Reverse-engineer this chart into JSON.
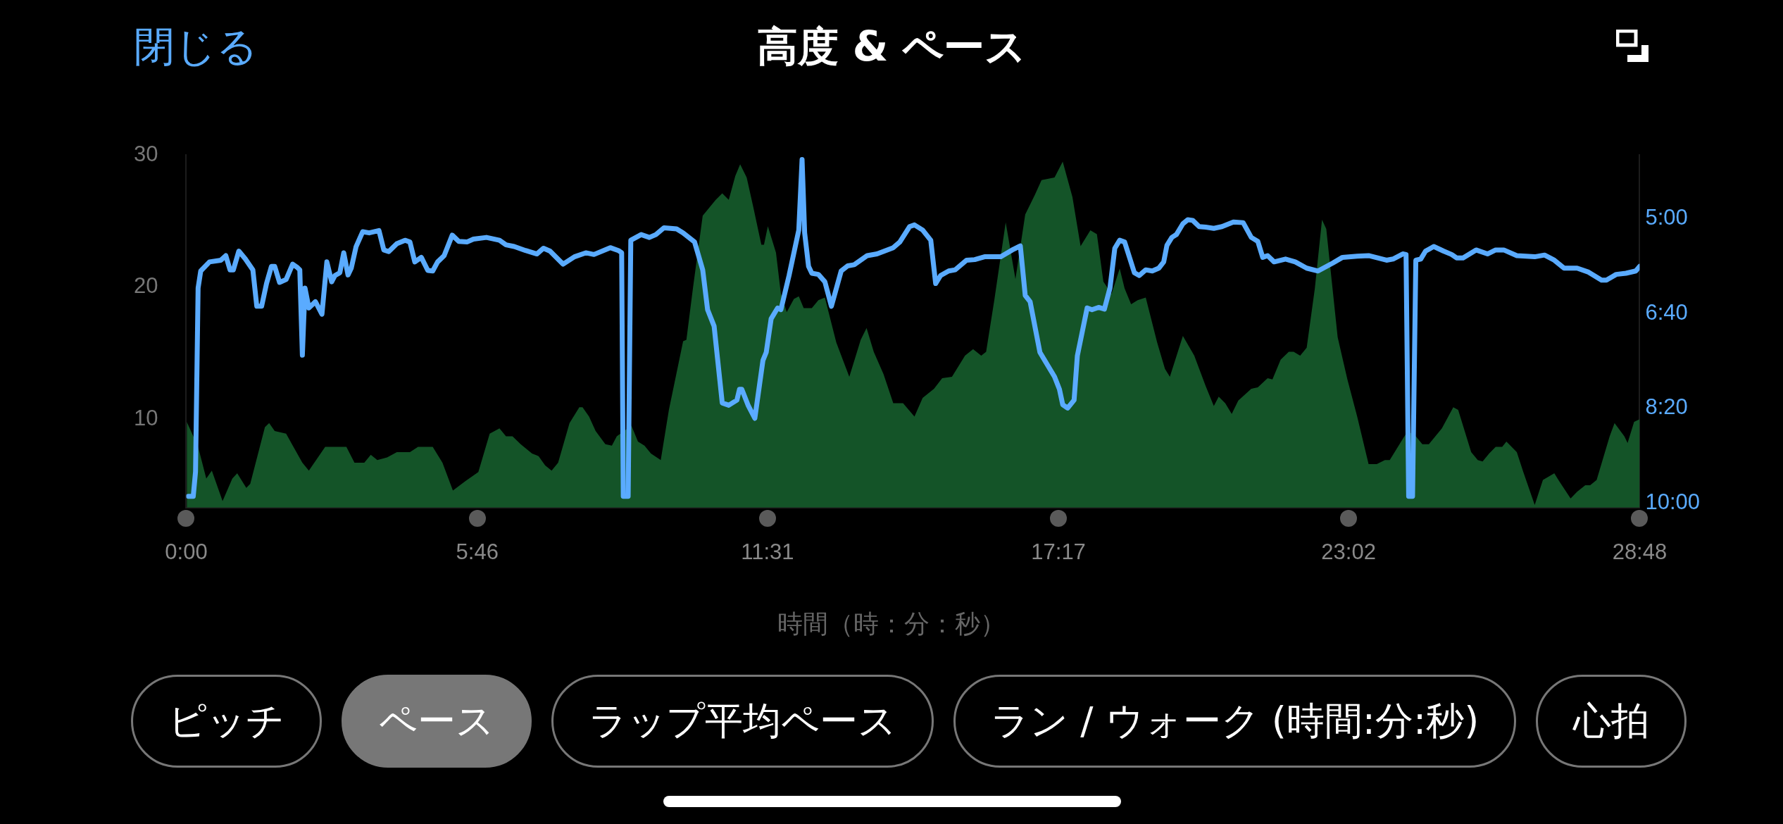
{
  "chart_data": {
    "type": "line",
    "title": "高度 & ペース",
    "xlabel": "時間（時：分：秒）",
    "annotations": [
      "閉じる",
      "ピッチ",
      "ペース",
      "ラップ平均ペース",
      "ラン / ウォーク (時間:分:秒)",
      "心拍"
    ],
    "xlim": [
      0,
      28.8
    ],
    "xticks": [
      {
        "value": 0,
        "label": "0:00"
      },
      {
        "value": 5.767,
        "label": "5:46"
      },
      {
        "value": 11.517,
        "label": "11:31"
      },
      {
        "value": 17.283,
        "label": "17:17"
      },
      {
        "value": 23.033,
        "label": "23:02"
      },
      {
        "value": 28.8,
        "label": "28:48"
      }
    ],
    "ylim": [
      3.3,
      30
    ],
    "yticks": [
      10,
      20,
      30
    ],
    "y2lim": [
      10.08,
      3.88
    ],
    "y2ticks": [
      {
        "value": 5,
        "label": "5:00"
      },
      {
        "value": 6.667,
        "label": "6:40"
      },
      {
        "value": 8.333,
        "label": "8:20"
      },
      {
        "value": 10,
        "label": "10:00"
      }
    ],
    "grid": false,
    "legend": false,
    "series": [
      {
        "type": "area",
        "color": "#145428",
        "x": [
          0.01,
          0.235,
          0.397,
          0.507,
          0.72,
          0.913,
          1.01,
          1.19,
          1.268,
          1.559,
          1.643,
          1.753,
          1.979,
          2.095,
          2.301,
          2.43,
          2.753,
          2.915,
          3.173,
          3.334,
          3.528,
          3.657,
          3.786,
          3.98,
          4.173,
          4.432,
          4.593,
          4.884,
          5.077,
          5.284,
          5.529,
          5.788,
          6.013,
          6.207,
          6.336,
          6.465,
          6.627,
          6.853,
          6.982,
          7.111,
          7.24,
          7.369,
          7.595,
          7.789,
          7.853,
          7.982,
          8.112,
          8.305,
          8.434,
          8.531,
          8.822,
          8.951,
          9.08,
          9.209,
          9.403,
          9.564,
          9.846,
          9.911,
          10.04,
          10.234,
          10.492,
          10.621,
          10.75,
          10.879,
          10.976,
          11.105,
          11.234,
          11.396,
          11.448,
          11.525,
          11.686,
          11.783,
          11.899,
          12.041,
          12.138,
          12.235,
          12.396,
          12.526,
          12.655,
          12.881,
          13.139,
          13.365,
          13.481,
          13.623,
          13.817,
          14.01,
          14.204,
          14.43,
          14.592,
          14.818,
          14.979,
          15.173,
          15.431,
          15.592,
          15.753,
          15.85,
          16.012,
          16.238,
          16.431,
          16.625,
          16.819,
          16.948,
          17.206,
          17.368,
          17.561,
          17.722,
          17.916,
          18.045,
          18.174,
          18.336,
          18.497,
          18.594,
          18.723,
          18.852,
          19.013,
          19.239,
          19.394,
          19.491,
          19.749,
          19.975,
          20.201,
          20.362,
          20.459,
          20.588,
          20.717,
          20.847,
          21.105,
          21.234,
          21.428,
          21.524,
          21.686,
          21.847,
          21.944,
          22.073,
          22.202,
          22.364,
          22.506,
          22.59,
          22.816,
          23.009,
          23.203,
          23.429,
          23.59,
          23.752,
          23.848,
          24.203,
          24.365,
          24.494,
          24.623,
          24.752,
          24.881,
          25.107,
          25.204,
          25.462,
          25.592,
          25.688,
          25.817,
          25.947,
          26.076,
          26.16,
          26.366,
          26.495,
          26.721,
          26.883,
          27.109,
          27.206,
          27.432,
          27.561,
          27.722,
          27.819,
          27.948,
          28.206,
          28.303,
          28.497,
          28.561,
          28.69,
          28.8
        ],
        "values": [
          9.8,
          7.9,
          5.5,
          6.1,
          3.8,
          5.5,
          5.9,
          4.8,
          5.1,
          9.4,
          9.7,
          9.1,
          8.9,
          8.1,
          6.7,
          6.1,
          7.9,
          7.9,
          7.9,
          6.7,
          6.7,
          7.3,
          6.9,
          7.1,
          7.5,
          7.5,
          7.9,
          7.9,
          6.7,
          4.6,
          5.3,
          6.0,
          8.9,
          9.3,
          8.7,
          8.7,
          8.1,
          7.4,
          7.2,
          6.5,
          6.1,
          6.7,
          9.7,
          10.9,
          10.9,
          10.2,
          9.1,
          8.1,
          8.0,
          8.7,
          9.5,
          8.3,
          8.0,
          7.4,
          6.9,
          10.7,
          15.9,
          16.0,
          19.9,
          25.4,
          26.6,
          27.1,
          26.6,
          28.4,
          29.3,
          28.3,
          26.1,
          23.2,
          23.2,
          24.6,
          22.6,
          19.5,
          18.1,
          19.1,
          19.3,
          18.4,
          18.4,
          19.0,
          19.2,
          15.8,
          13.2,
          16.0,
          16.9,
          15.1,
          13.4,
          11.2,
          11.2,
          10.2,
          11.6,
          12.3,
          13.1,
          13.2,
          14.8,
          15.3,
          14.8,
          15.1,
          19.0,
          24.9,
          20.6,
          25.5,
          27.0,
          28.1,
          28.3,
          29.5,
          26.8,
          23.1,
          24.3,
          24.0,
          20.4,
          19.5,
          21.4,
          19.9,
          18.7,
          19.0,
          19.2,
          15.8,
          13.8,
          13.2,
          16.3,
          14.8,
          12.5,
          11.0,
          11.7,
          11.2,
          10.4,
          11.4,
          12.3,
          12.4,
          13.1,
          13.0,
          14.5,
          15.1,
          15.1,
          14.8,
          15.4,
          19.9,
          25.1,
          24.4,
          16.2,
          13.0,
          10.2,
          6.6,
          6.6,
          6.9,
          6.9,
          9.1,
          8.7,
          8.1,
          8.1,
          8.7,
          9.3,
          10.9,
          10.7,
          7.5,
          6.9,
          6.8,
          7.4,
          7.9,
          7.9,
          8.3,
          7.5,
          6.0,
          3.5,
          5.4,
          5.9,
          5.3,
          4.0,
          4.5,
          5.0,
          5.0,
          5.4,
          8.7,
          9.7,
          8.7,
          8.2,
          9.8,
          10.0
        ]
      },
      {
        "type": "line",
        "axis": "y2",
        "color": "#5aabff",
        "x": [
          0.042,
          0.139,
          0.184,
          0.235,
          0.287,
          0.461,
          0.687,
          0.784,
          0.868,
          0.933,
          1.042,
          1.172,
          1.32,
          1.398,
          1.494,
          1.591,
          1.688,
          1.753,
          1.849,
          1.979,
          2.108,
          2.204,
          2.25,
          2.301,
          2.353,
          2.43,
          2.56,
          2.689,
          2.786,
          2.882,
          2.947,
          3.044,
          3.121,
          3.205,
          3.27,
          3.366,
          3.496,
          3.625,
          3.819,
          3.915,
          4.012,
          4.173,
          4.335,
          4.432,
          4.529,
          4.658,
          4.787,
          4.884,
          4.981,
          5.11,
          5.271,
          5.4,
          5.562,
          5.691,
          5.949,
          6.207,
          6.336,
          6.498,
          6.723,
          6.949,
          7.079,
          7.208,
          7.466,
          7.692,
          7.918,
          8.079,
          8.402,
          8.563,
          8.628,
          8.66,
          8.757,
          8.809,
          9.015,
          9.177,
          9.306,
          9.467,
          9.597,
          9.717,
          9.846,
          10.072,
          10.234,
          10.331,
          10.46,
          10.621,
          10.75,
          10.912,
          10.963,
          11.009,
          11.138,
          11.267,
          11.428,
          11.493,
          11.59,
          11.719,
          11.783,
          11.945,
          12.138,
          12.203,
          12.254,
          12.332,
          12.397,
          12.526,
          12.655,
          12.784,
          12.978,
          13.107,
          13.236,
          13.494,
          13.688,
          14.01,
          14.14,
          14.333,
          14.43,
          14.592,
          14.753,
          14.85,
          14.947,
          15.108,
          15.237,
          15.463,
          15.624,
          15.818,
          16.141,
          16.367,
          16.528,
          16.625,
          16.722,
          16.916,
          17.206,
          17.303,
          17.368,
          17.464,
          17.593,
          17.658,
          17.852,
          17.948,
          18.078,
          18.194,
          18.304,
          18.4,
          18.497,
          18.594,
          18.788,
          18.885,
          19.013,
          19.143,
          19.272,
          19.369,
          19.433,
          19.53,
          19.62,
          19.749,
          19.846,
          19.943,
          20.072,
          20.201,
          20.362,
          20.524,
          20.75,
          20.943,
          21.105,
          21.234,
          21.331,
          21.428,
          21.557,
          21.783,
          21.976,
          22.202,
          22.428,
          22.719,
          22.912,
          23.203,
          23.429,
          23.784,
          23.913,
          24.107,
          24.171,
          24.223,
          24.3,
          24.365,
          24.462,
          24.558,
          24.72,
          24.914,
          25.075,
          25.172,
          25.301,
          25.559,
          25.785,
          25.947,
          26.108,
          26.366,
          26.721,
          26.915,
          27.109,
          27.303,
          27.561,
          27.787,
          28.045,
          28.142,
          28.335,
          28.529,
          28.723,
          28.8
        ],
        "values": [
          9.88,
          9.88,
          9.45,
          6.22,
          5.92,
          5.76,
          5.73,
          5.65,
          5.9,
          5.9,
          5.57,
          5.71,
          5.9,
          6.54,
          6.54,
          6.14,
          5.84,
          5.84,
          6.12,
          6.07,
          5.8,
          5.86,
          5.9,
          7.4,
          6.22,
          6.57,
          6.46,
          6.68,
          5.76,
          6.11,
          6.0,
          5.95,
          5.6,
          5.99,
          5.87,
          5.49,
          5.23,
          5.25,
          5.21,
          5.55,
          5.58,
          5.44,
          5.38,
          5.41,
          5.76,
          5.68,
          5.91,
          5.92,
          5.76,
          5.65,
          5.29,
          5.4,
          5.41,
          5.36,
          5.33,
          5.38,
          5.46,
          5.49,
          5.56,
          5.62,
          5.52,
          5.57,
          5.8,
          5.67,
          5.6,
          5.63,
          5.51,
          5.56,
          5.6,
          9.88,
          9.88,
          5.38,
          5.28,
          5.33,
          5.28,
          5.16,
          5.17,
          5.18,
          5.25,
          5.41,
          5.9,
          6.6,
          6.89,
          8.24,
          8.28,
          8.19,
          8.0,
          8.0,
          8.29,
          8.51,
          7.49,
          7.35,
          6.76,
          6.57,
          6.6,
          6.0,
          5.2,
          3.96,
          5.25,
          5.84,
          5.96,
          5.98,
          6.11,
          6.54,
          5.92,
          5.83,
          5.81,
          5.65,
          5.62,
          5.51,
          5.41,
          5.14,
          5.11,
          5.2,
          5.38,
          6.14,
          6.0,
          5.92,
          5.9,
          5.73,
          5.72,
          5.67,
          5.67,
          5.55,
          5.48,
          6.35,
          6.46,
          7.35,
          7.78,
          8.0,
          8.27,
          8.33,
          8.19,
          7.41,
          6.57,
          6.6,
          6.56,
          6.59,
          6.22,
          5.52,
          5.38,
          5.41,
          5.95,
          6.0,
          5.9,
          5.92,
          5.87,
          5.76,
          5.47,
          5.33,
          5.28,
          5.09,
          5.02,
          5.03,
          5.14,
          5.15,
          5.17,
          5.14,
          5.06,
          5.07,
          5.33,
          5.4,
          5.68,
          5.65,
          5.76,
          5.71,
          5.76,
          5.87,
          5.92,
          5.78,
          5.68,
          5.66,
          5.65,
          5.73,
          5.71,
          5.62,
          5.63,
          9.88,
          9.88,
          5.73,
          5.71,
          5.57,
          5.49,
          5.57,
          5.63,
          5.69,
          5.69,
          5.55,
          5.62,
          5.55,
          5.55,
          5.65,
          5.67,
          5.64,
          5.73,
          5.87,
          5.87,
          5.94,
          6.08,
          6.08,
          5.98,
          5.96,
          5.92,
          5.84
        ]
      }
    ]
  }
}
